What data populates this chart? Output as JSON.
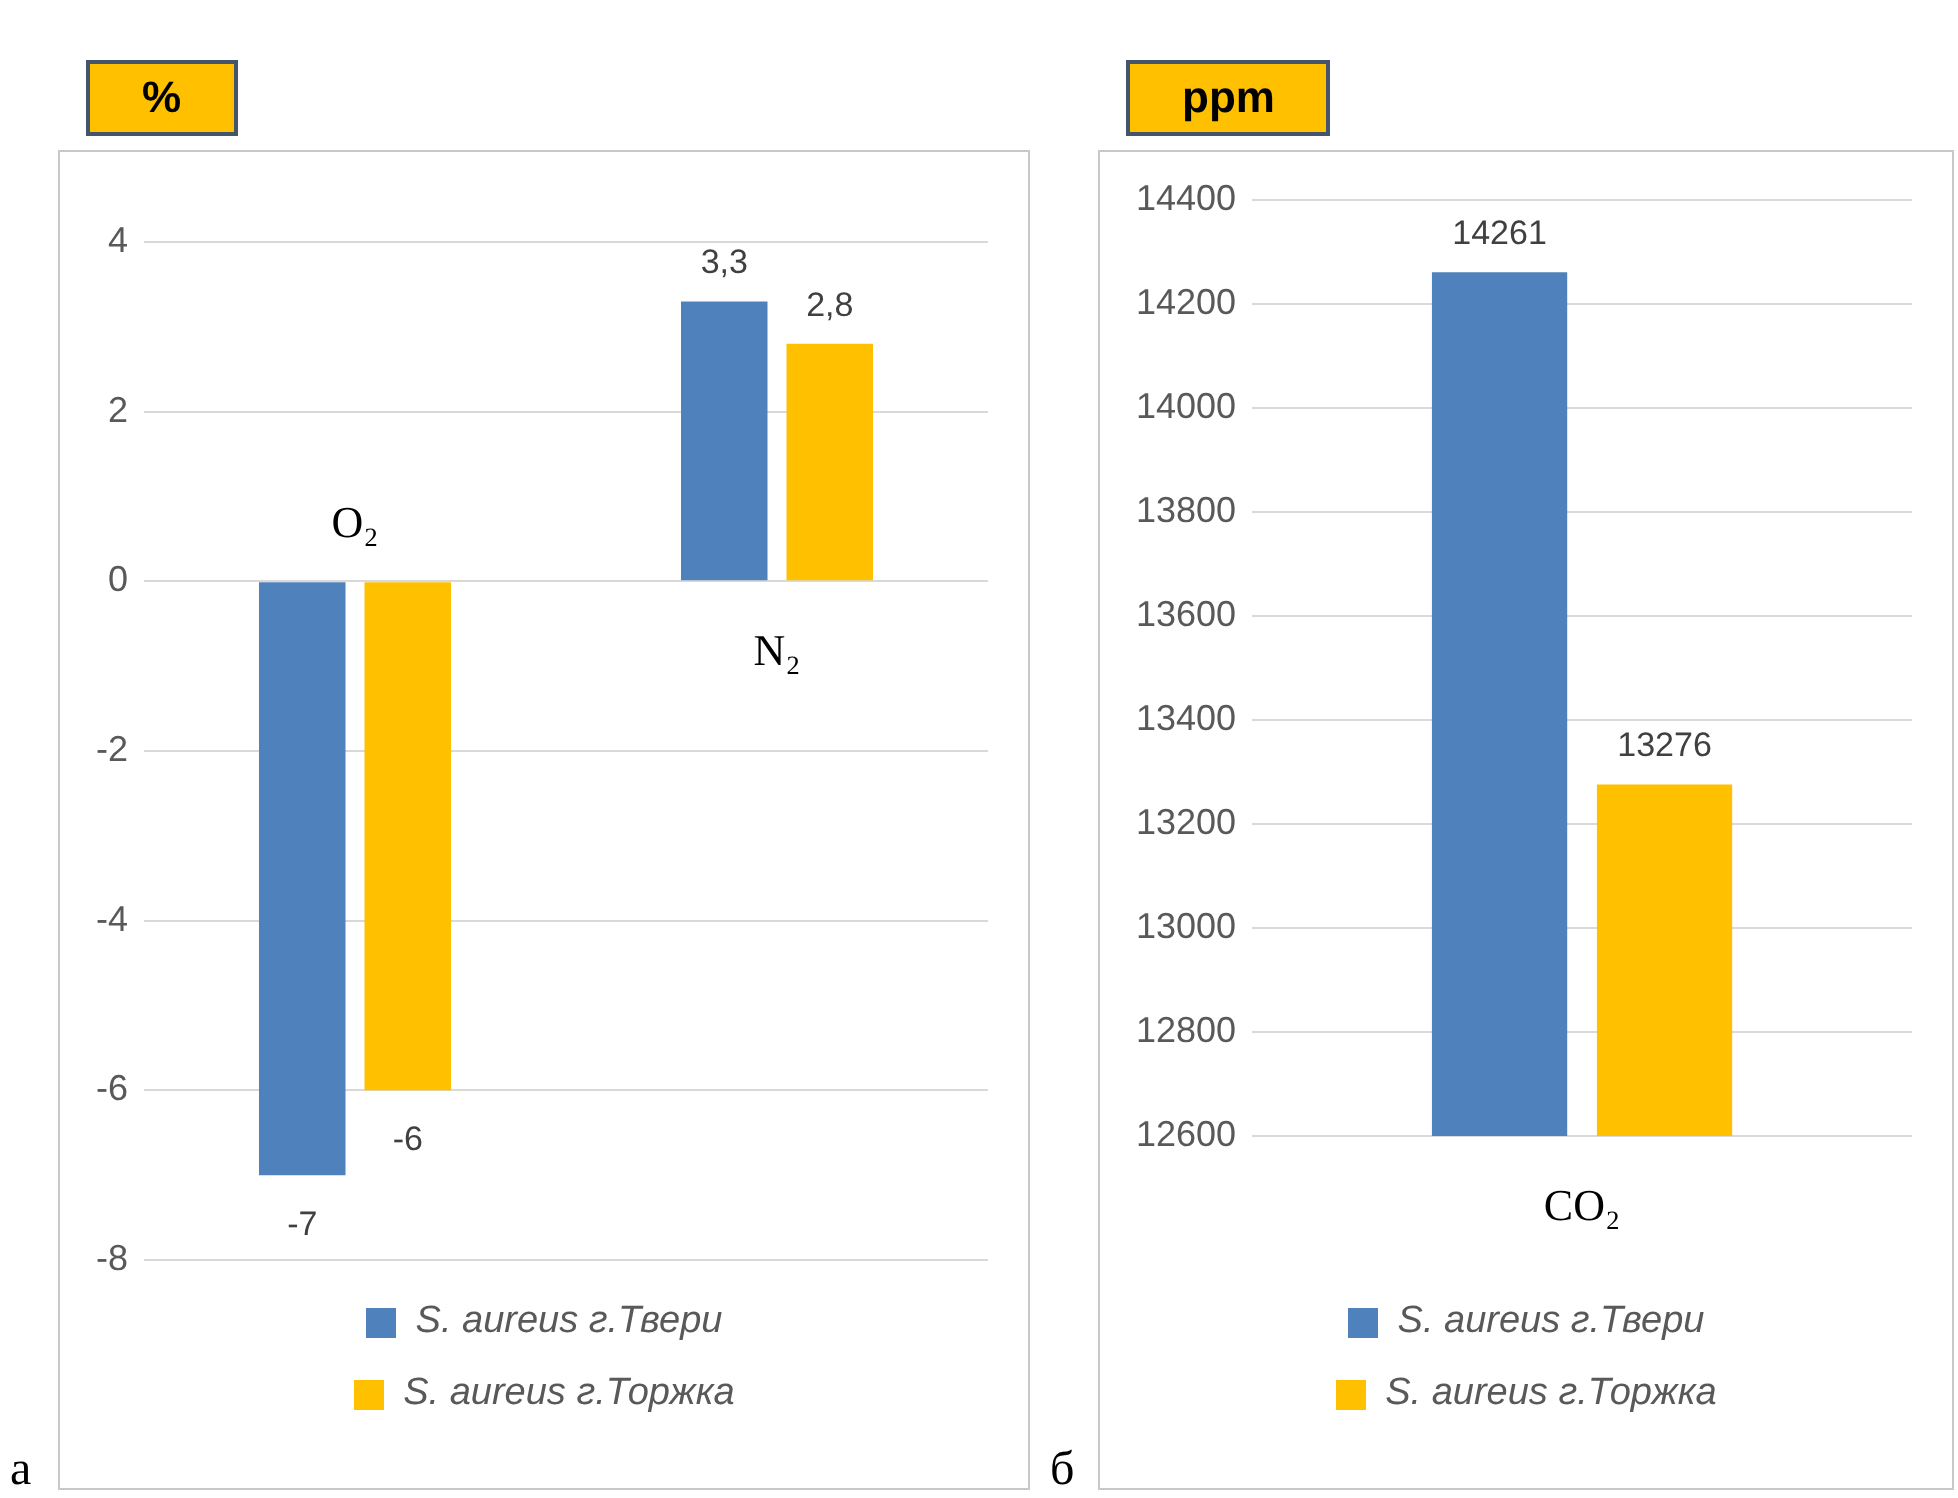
{
  "chart_data": [
    {
      "type": "bar",
      "ylabel": "%",
      "categories": [
        "O₂",
        "N₂"
      ],
      "series": [
        {
          "name": "S. aureus г.Твери",
          "color": "#4f81bd",
          "values": [
            -7,
            3.3
          ],
          "value_labels": [
            "-7",
            "3,3"
          ]
        },
        {
          "name": "S. aureus г.Торжка",
          "color": "#ffc000",
          "values": [
            -6,
            2.8
          ],
          "value_labels": [
            "-6",
            "2,8"
          ]
        }
      ],
      "ylim": [
        -8,
        4
      ],
      "yticks": [
        -8,
        -6,
        -4,
        -2,
        0,
        2,
        4
      ],
      "grid": "y",
      "legend": "bottom",
      "annotations": [
        "а"
      ]
    },
    {
      "type": "bar",
      "ylabel": "ppm",
      "categories": [
        "CO₂"
      ],
      "series": [
        {
          "name": "S. aureus г.Твери",
          "color": "#4f81bd",
          "values": [
            14261
          ]
        },
        {
          "name": "S. aureus г.Торжка",
          "color": "#ffc000",
          "values": [
            13276
          ]
        }
      ],
      "data_labels": true,
      "ylim": [
        12600,
        14400
      ],
      "yticks": [
        12600,
        12800,
        13000,
        13200,
        13400,
        13600,
        13800,
        14000,
        14200,
        14400
      ],
      "grid": "y",
      "legend": "bottom",
      "annotations": [
        "б"
      ]
    }
  ]
}
